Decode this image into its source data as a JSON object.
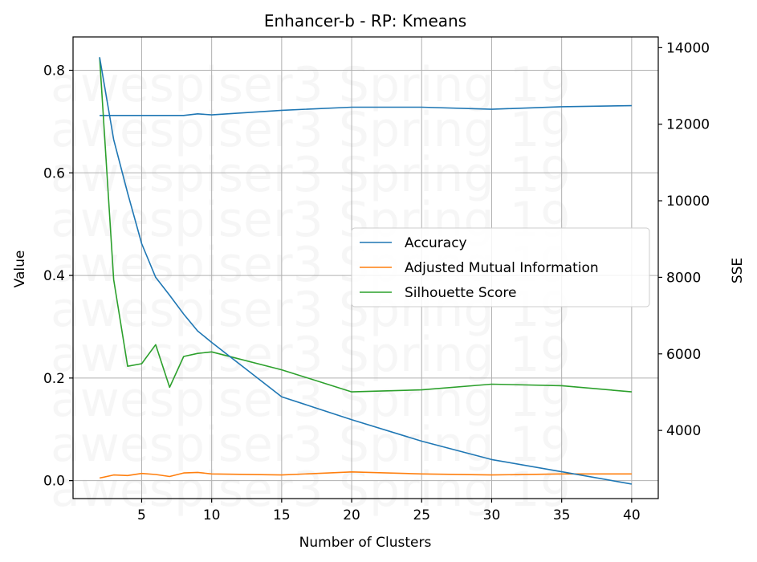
{
  "chart_data": {
    "type": "line",
    "title": "Enhancer-b - RP: Kmeans",
    "xlabel": "Number of Clusters",
    "ylabel": "Value",
    "y2label": "SSE",
    "xlim": [
      0.1,
      41.9
    ],
    "ylim": [
      -0.035,
      0.865
    ],
    "y2lim": [
      2220,
      14280
    ],
    "xticks": [
      5,
      10,
      15,
      20,
      25,
      30,
      35,
      40
    ],
    "yticks": [
      0.0,
      0.2,
      0.4,
      0.6,
      0.8
    ],
    "ytick_labels": [
      "0.0",
      "0.2",
      "0.4",
      "0.6",
      "0.8"
    ],
    "y2ticks": [
      4000,
      6000,
      8000,
      10000,
      12000,
      14000
    ],
    "grid": true,
    "legend_position": "center-right",
    "x": [
      2,
      3,
      4,
      5,
      6,
      7,
      8,
      9,
      10,
      15,
      20,
      25,
      30,
      35,
      40
    ],
    "series": [
      {
        "name": "Accuracy",
        "axis": "left",
        "color": "#1f77b4",
        "values": [
          0.712,
          0.712,
          0.712,
          0.712,
          0.712,
          0.712,
          0.712,
          0.715,
          0.713,
          0.722,
          0.728,
          0.728,
          0.724,
          0.729,
          0.731
        ]
      },
      {
        "name": "Adjusted Mutual Information",
        "axis": "left",
        "color": "#ff7f0e",
        "values": [
          0.005,
          0.011,
          0.01,
          0.014,
          0.012,
          0.008,
          0.015,
          0.016,
          0.013,
          0.011,
          0.017,
          0.013,
          0.011,
          0.013,
          0.013
        ]
      },
      {
        "name": "Silhouette Score",
        "axis": "left",
        "color": "#2ca02c",
        "values": [
          0.825,
          0.392,
          0.223,
          0.228,
          0.265,
          0.182,
          0.242,
          0.248,
          0.251,
          0.216,
          0.173,
          0.177,
          0.188,
          0.185,
          0.173
        ]
      },
      {
        "name": "SSE",
        "axis": "right",
        "color": "#1f77b4",
        "values": [
          13750,
          11600,
          10200,
          8880,
          8000,
          7530,
          7040,
          6600,
          6300,
          4880,
          4280,
          3720,
          3240,
          2920,
          2600
        ]
      }
    ],
    "watermark": "awespiser3 Spring 19"
  }
}
